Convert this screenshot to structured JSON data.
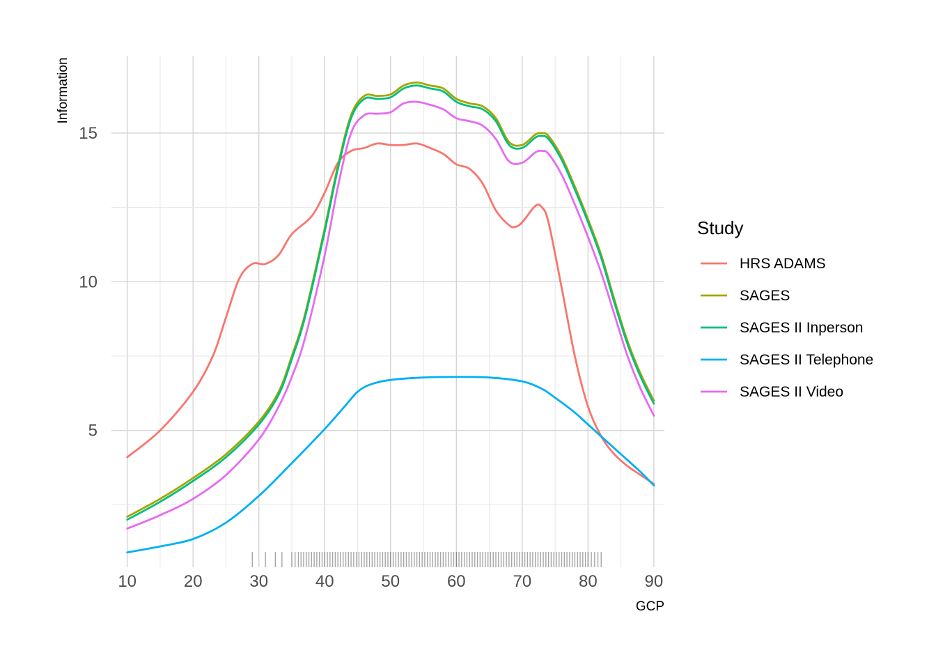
{
  "chart_data": {
    "type": "line",
    "title": "",
    "xlabel": "GCP",
    "ylabel": "Information",
    "xlim": [
      10,
      90
    ],
    "ylim": [
      0.4,
      17.6
    ],
    "x_ticks": [
      10,
      20,
      30,
      40,
      50,
      60,
      70,
      80,
      90
    ],
    "y_ticks": [
      5,
      10,
      15
    ],
    "grid": true,
    "legend": {
      "title": "Study",
      "placement": "right"
    },
    "series": [
      {
        "name": "HRS ADAMS",
        "color": "#F8766D",
        "x": [
          10,
          15,
          20,
          23,
          25,
          27,
          29,
          31,
          33,
          35,
          38,
          40,
          42,
          44,
          46,
          48,
          50,
          52,
          54,
          56,
          58,
          60,
          62,
          64,
          66,
          68,
          69,
          70,
          72,
          73,
          74,
          76,
          78,
          80,
          82,
          84,
          86,
          88,
          90
        ],
        "y": [
          4.1,
          5.0,
          6.3,
          7.5,
          8.8,
          10.1,
          10.6,
          10.6,
          10.9,
          11.6,
          12.2,
          13.0,
          14.0,
          14.4,
          14.5,
          14.65,
          14.6,
          14.6,
          14.65,
          14.5,
          14.3,
          13.95,
          13.8,
          13.3,
          12.4,
          11.9,
          11.85,
          12.0,
          12.55,
          12.5,
          12.0,
          9.8,
          7.5,
          5.8,
          4.8,
          4.2,
          3.8,
          3.5,
          3.2
        ]
      },
      {
        "name": "SAGES",
        "color": "#A3A500",
        "x": [
          10,
          15,
          20,
          25,
          30,
          33,
          35,
          37,
          40,
          42,
          44,
          46,
          48,
          50,
          52,
          54,
          56,
          58,
          60,
          62,
          64,
          66,
          68,
          70,
          72,
          73,
          74,
          76,
          78,
          80,
          82,
          84,
          86,
          88,
          90
        ],
        "y": [
          2.1,
          2.7,
          3.4,
          4.2,
          5.3,
          6.3,
          7.5,
          8.9,
          11.8,
          13.9,
          15.6,
          16.25,
          16.25,
          16.3,
          16.6,
          16.7,
          16.6,
          16.5,
          16.15,
          16.0,
          15.9,
          15.5,
          14.7,
          14.6,
          14.95,
          15.0,
          14.9,
          14.2,
          13.2,
          12.1,
          10.9,
          9.4,
          8.0,
          6.9,
          6.0
        ]
      },
      {
        "name": "SAGES II Inperson",
        "color": "#00BF7D",
        "x": [
          10,
          15,
          20,
          25,
          30,
          33,
          35,
          37,
          40,
          42,
          44,
          46,
          48,
          50,
          52,
          54,
          56,
          58,
          60,
          62,
          64,
          66,
          68,
          70,
          72,
          73,
          74,
          76,
          78,
          80,
          82,
          84,
          86,
          88,
          90
        ],
        "y": [
          2.0,
          2.6,
          3.3,
          4.1,
          5.2,
          6.2,
          7.4,
          8.8,
          11.7,
          13.8,
          15.5,
          16.15,
          16.15,
          16.2,
          16.5,
          16.6,
          16.5,
          16.4,
          16.05,
          15.9,
          15.8,
          15.4,
          14.6,
          14.5,
          14.85,
          14.9,
          14.8,
          14.1,
          13.1,
          12.0,
          10.8,
          9.3,
          7.9,
          6.8,
          5.9
        ]
      },
      {
        "name": "SAGES II Telephone",
        "color": "#00B0F6",
        "x": [
          10,
          15,
          20,
          25,
          30,
          35,
          40,
          43,
          45,
          47,
          50,
          55,
          60,
          65,
          70,
          73,
          75,
          78,
          80,
          83,
          85,
          88,
          90
        ],
        "y": [
          0.9,
          1.1,
          1.35,
          1.9,
          2.8,
          3.9,
          5.05,
          5.8,
          6.3,
          6.55,
          6.7,
          6.78,
          6.8,
          6.78,
          6.65,
          6.4,
          6.1,
          5.6,
          5.2,
          4.6,
          4.2,
          3.6,
          3.15
        ]
      },
      {
        "name": "SAGES II Video",
        "color": "#E76BF3",
        "x": [
          10,
          15,
          20,
          25,
          30,
          33,
          35,
          37,
          40,
          42,
          44,
          46,
          48,
          50,
          52,
          54,
          56,
          58,
          60,
          62,
          64,
          66,
          68,
          70,
          72,
          73,
          74,
          76,
          78,
          80,
          82,
          84,
          86,
          88,
          90
        ],
        "y": [
          1.7,
          2.15,
          2.7,
          3.5,
          4.7,
          5.8,
          6.8,
          8.1,
          10.9,
          13.2,
          15.0,
          15.6,
          15.65,
          15.7,
          16.0,
          16.05,
          15.95,
          15.8,
          15.5,
          15.4,
          15.25,
          14.8,
          14.05,
          14.0,
          14.35,
          14.4,
          14.3,
          13.6,
          12.6,
          11.5,
          10.3,
          8.9,
          7.5,
          6.4,
          5.5
        ]
      }
    ],
    "rug": {
      "axis": "x",
      "values": [
        29,
        31,
        32.5,
        33.5,
        35,
        35.5,
        36,
        36.4,
        36.8,
        37.2,
        37.6,
        38,
        38.4,
        38.8,
        39.2,
        39.6,
        40,
        40.4,
        40.8,
        41.2,
        41.6,
        42,
        42.4,
        42.8,
        43.2,
        43.6,
        44,
        44.4,
        44.8,
        45.2,
        45.6,
        46,
        46.4,
        46.8,
        47.2,
        47.6,
        48,
        48.4,
        48.8,
        49.2,
        49.6,
        50,
        50.4,
        50.8,
        51.2,
        51.6,
        52,
        52.4,
        52.8,
        53.2,
        53.6,
        54,
        54.4,
        54.8,
        55.2,
        55.6,
        56,
        56.4,
        56.8,
        57.2,
        57.6,
        58,
        58.4,
        58.8,
        59.2,
        59.6,
        60,
        60.4,
        60.8,
        61.2,
        61.6,
        62,
        62.4,
        62.8,
        63.2,
        63.6,
        64,
        64.4,
        64.8,
        65.2,
        65.6,
        66,
        66.4,
        66.8,
        67.2,
        67.6,
        68,
        68.4,
        68.8,
        69.2,
        69.6,
        70,
        70.4,
        70.8,
        71.2,
        71.6,
        72,
        72.4,
        72.8,
        73.2,
        73.6,
        74,
        74.4,
        74.8,
        75.2,
        75.6,
        76,
        76.4,
        76.8,
        77.2,
        77.6,
        78,
        78.4,
        78.8,
        79.2,
        79.6,
        80,
        80.5,
        81,
        81.5,
        82
      ]
    }
  }
}
